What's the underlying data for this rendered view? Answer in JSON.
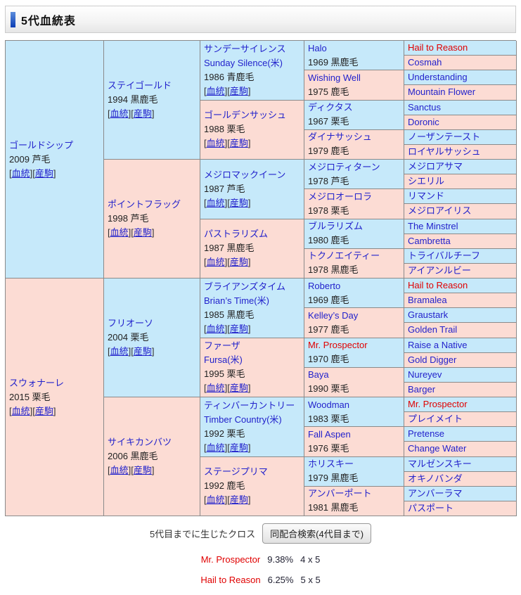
{
  "header": {
    "title": "5代血統表"
  },
  "colors": {
    "accent_blue": "#0b3db4",
    "sire_bg": "#c6e9fa",
    "dam_bg": "#fcdcd4",
    "link_blue": "#2222cc",
    "crossed_red": "#e00000"
  },
  "pedigree": {
    "link_labels": [
      "血統",
      "産駒"
    ],
    "generations": [
      {
        "cells": [
          {
            "name": "ゴールドシップ",
            "detail": "2009 芦毛",
            "links": true,
            "sex": "sire"
          },
          {
            "name": "スウォナーレ",
            "detail": "2015 栗毛",
            "links": true,
            "sex": "dam"
          }
        ]
      },
      {
        "cells": [
          {
            "name": "ステイゴールド",
            "detail": "1994 黒鹿毛",
            "links": true,
            "sex": "sire"
          },
          {
            "name": "ポイントフラッグ",
            "detail": "1998 芦毛",
            "links": true,
            "sex": "dam"
          },
          {
            "name": "フリオーソ",
            "detail": "2004 栗毛",
            "links": true,
            "sex": "sire"
          },
          {
            "name": "サイキカンバツ",
            "detail": "2006 黒鹿毛",
            "links": true,
            "sex": "dam"
          }
        ]
      },
      {
        "cells": [
          {
            "name": "サンデーサイレンス",
            "name_en": "Sunday Silence(米)",
            "detail": "1986 青鹿毛",
            "links": true,
            "sex": "sire"
          },
          {
            "name": "ゴールデンサッシュ",
            "detail": "1988 栗毛",
            "links": true,
            "sex": "dam"
          },
          {
            "name": "メジロマックイーン",
            "detail": "1987 芦毛",
            "links": true,
            "sex": "sire"
          },
          {
            "name": "パストラリズム",
            "detail": "1987 黒鹿毛",
            "links": true,
            "sex": "dam"
          },
          {
            "name": "ブライアンズタイム",
            "name_en": "Brian’s Time(米)",
            "detail": "1985 黒鹿毛",
            "links": true,
            "sex": "sire"
          },
          {
            "name": "ファーザ",
            "name_en": "Fursa(米)",
            "detail": "1995 栗毛",
            "links": true,
            "sex": "dam"
          },
          {
            "name": "ティンバーカントリー",
            "name_en": "Timber Country(米)",
            "detail": "1992 栗毛",
            "links": true,
            "sex": "sire"
          },
          {
            "name": "ステージプリマ",
            "detail": "1992 鹿毛",
            "links": true,
            "sex": "dam"
          }
        ]
      },
      {
        "cells": [
          {
            "name": "Halo",
            "detail": "1969 黒鹿毛",
            "sex": "sire"
          },
          {
            "name": "Wishing Well",
            "detail": "1975 鹿毛",
            "sex": "dam"
          },
          {
            "name": "ディクタス",
            "detail": "1967 栗毛",
            "sex": "sire"
          },
          {
            "name": "ダイナサッシュ",
            "detail": "1979 鹿毛",
            "sex": "dam"
          },
          {
            "name": "メジロティターン",
            "detail": "1978 芦毛",
            "sex": "sire"
          },
          {
            "name": "メジロオーロラ",
            "detail": "1978 栗毛",
            "sex": "dam"
          },
          {
            "name": "ブルラリズム",
            "detail": "1980 鹿毛",
            "sex": "sire"
          },
          {
            "name": "トクノエイティー",
            "detail": "1978 黒鹿毛",
            "sex": "dam"
          },
          {
            "name": "Roberto",
            "detail": "1969 鹿毛",
            "sex": "sire"
          },
          {
            "name": "Kelley’s Day",
            "detail": "1977 鹿毛",
            "sex": "dam"
          },
          {
            "name": "Mr. Prospector",
            "detail": "1970 鹿毛",
            "sex": "sire",
            "highlight": true
          },
          {
            "name": "Baya",
            "detail": "1990 栗毛",
            "sex": "dam"
          },
          {
            "name": "Woodman",
            "detail": "1983 栗毛",
            "sex": "sire"
          },
          {
            "name": "Fall Aspen",
            "detail": "1976 栗毛",
            "sex": "dam"
          },
          {
            "name": "ホリスキー",
            "detail": "1979 黒鹿毛",
            "sex": "sire"
          },
          {
            "name": "アンバーポート",
            "detail": "1981 黒鹿毛",
            "sex": "dam"
          }
        ]
      },
      {
        "cells": [
          {
            "name": "Hail to Reason",
            "sex": "sire",
            "highlight": true
          },
          {
            "name": "Cosmah",
            "sex": "dam"
          },
          {
            "name": "Understanding",
            "sex": "sire"
          },
          {
            "name": "Mountain Flower",
            "sex": "dam"
          },
          {
            "name": "Sanctus",
            "sex": "sire"
          },
          {
            "name": "Doronic",
            "sex": "dam"
          },
          {
            "name": "ノーザンテースト",
            "sex": "sire"
          },
          {
            "name": "ロイヤルサッシュ",
            "sex": "dam"
          },
          {
            "name": "メジロアサマ",
            "sex": "sire"
          },
          {
            "name": "シエリル",
            "sex": "dam"
          },
          {
            "name": "リマンド",
            "sex": "sire"
          },
          {
            "name": "メジロアイリス",
            "sex": "dam"
          },
          {
            "name": "The Minstrel",
            "sex": "sire"
          },
          {
            "name": "Cambretta",
            "sex": "dam"
          },
          {
            "name": "トライバルチーフ",
            "sex": "sire"
          },
          {
            "name": "アイアンルビー",
            "sex": "dam"
          },
          {
            "name": "Hail to Reason",
            "sex": "sire",
            "highlight": true
          },
          {
            "name": "Bramalea",
            "sex": "dam"
          },
          {
            "name": "Graustark",
            "sex": "sire"
          },
          {
            "name": "Golden Trail",
            "sex": "dam"
          },
          {
            "name": "Raise a Native",
            "sex": "sire"
          },
          {
            "name": "Gold Digger",
            "sex": "dam"
          },
          {
            "name": "Nureyev",
            "sex": "sire"
          },
          {
            "name": "Barger",
            "sex": "dam"
          },
          {
            "name": "Mr. Prospector",
            "sex": "sire",
            "highlight": true
          },
          {
            "name": "プレイメイト",
            "sex": "dam"
          },
          {
            "name": "Pretense",
            "sex": "sire"
          },
          {
            "name": "Change Water",
            "sex": "dam"
          },
          {
            "name": "マルゼンスキー",
            "sex": "sire"
          },
          {
            "name": "オキノバンダ",
            "sex": "dam"
          },
          {
            "name": "アンバーラマ",
            "sex": "sire"
          },
          {
            "name": "パスポート",
            "sex": "dam"
          }
        ]
      }
    ]
  },
  "footer": {
    "cross_label": "5代目までに生じたクロス",
    "search_button_label": "同配合検索(4代目まで)",
    "crosses": [
      {
        "name": "Mr. Prospector",
        "percent": "9.38%",
        "pattern": "4 x 5"
      },
      {
        "name": "Hail to Reason",
        "percent": "6.25%",
        "pattern": "5 x 5"
      }
    ]
  }
}
